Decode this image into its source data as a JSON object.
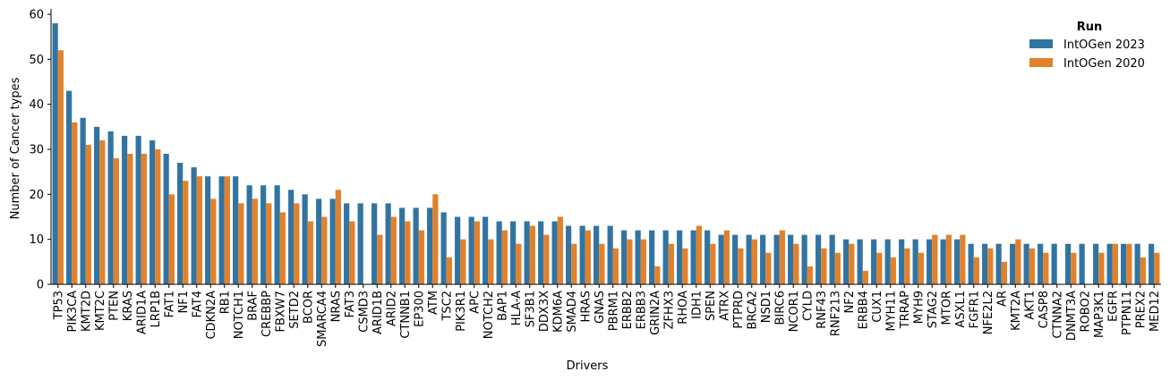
{
  "chart_data": {
    "type": "bar",
    "title": "",
    "xlabel": "Drivers",
    "ylabel": "Number of Cancer types",
    "ylim": [
      0,
      61
    ],
    "yticks": [
      0,
      10,
      20,
      30,
      40,
      50,
      60
    ],
    "legend": {
      "title": "Run",
      "placement": "top-right"
    },
    "colors": [
      "#3274a1",
      "#e1812c"
    ],
    "categories": [
      "TP53",
      "PIK3CA",
      "KMT2D",
      "KMT2C",
      "PTEN",
      "KRAS",
      "ARID1A",
      "LRP1B",
      "FAT1",
      "NF1",
      "FAT4",
      "CDKN2A",
      "RB1",
      "NOTCH1",
      "BRAF",
      "CREBBP",
      "FBXW7",
      "SETD2",
      "BCOR",
      "SMARCA4",
      "NRAS",
      "FAT3",
      "CSMD3",
      "ARID1B",
      "ARID2",
      "CTNNB1",
      "EP300",
      "ATM",
      "TSC2",
      "PIK3R1",
      "APC",
      "NOTCH2",
      "BAP1",
      "HLA-A",
      "SF3B1",
      "DDX3X",
      "KDM6A",
      "SMAD4",
      "HRAS",
      "GNAS",
      "PBRM1",
      "ERBB2",
      "ERBB3",
      "GRIN2A",
      "ZFHX3",
      "RHOA",
      "IDH1",
      "SPEN",
      "ATRX",
      "PTPRD",
      "BRCA2",
      "NSD1",
      "BIRC6",
      "NCOR1",
      "CYLD",
      "RNF43",
      "RNF213",
      "NF2",
      "ERBB4",
      "CUX1",
      "MYH11",
      "TRRAP",
      "MYH9",
      "STAG2",
      "MTOR",
      "ASXL1",
      "FGFR1",
      "NFE2L2",
      "AR",
      "KMT2A",
      "AKT1",
      "CASP8",
      "CTNNA2",
      "DNMT3A",
      "ROBO2",
      "MAP3K1",
      "EGFR",
      "PTPN11",
      "PREX2",
      "MED12"
    ],
    "series": [
      {
        "name": "IntOGen 2023",
        "values": [
          58,
          43,
          37,
          35,
          34,
          33,
          33,
          32,
          29,
          27,
          26,
          24,
          24,
          24,
          22,
          22,
          22,
          21,
          20,
          19,
          19,
          18,
          18,
          18,
          18,
          17,
          17,
          17,
          16,
          15,
          15,
          15,
          14,
          14,
          14,
          14,
          14,
          13,
          13,
          13,
          13,
          12,
          12,
          12,
          12,
          12,
          12,
          12,
          11,
          11,
          11,
          11,
          11,
          11,
          11,
          11,
          11,
          10,
          10,
          10,
          10,
          10,
          10,
          10,
          10,
          10,
          9,
          9,
          9,
          9,
          9,
          9,
          9,
          9,
          9,
          9,
          9,
          9,
          9,
          9
        ]
      },
      {
        "name": "IntOGen 2020",
        "values": [
          52,
          36,
          31,
          32,
          28,
          29,
          29,
          30,
          20,
          23,
          24,
          19,
          24,
          18,
          19,
          18,
          16,
          18,
          14,
          15,
          21,
          14,
          0,
          11,
          15,
          14,
          12,
          20,
          6,
          10,
          14,
          10,
          12,
          9,
          13,
          11,
          15,
          9,
          12,
          9,
          8,
          10,
          10,
          4,
          9,
          8,
          13,
          9,
          12,
          8,
          10,
          7,
          12,
          9,
          4,
          8,
          7,
          9,
          3,
          7,
          6,
          8,
          7,
          11,
          11,
          11,
          6,
          8,
          5,
          10,
          8,
          7,
          0,
          7,
          0,
          7,
          9,
          9,
          6,
          7
        ]
      }
    ]
  }
}
